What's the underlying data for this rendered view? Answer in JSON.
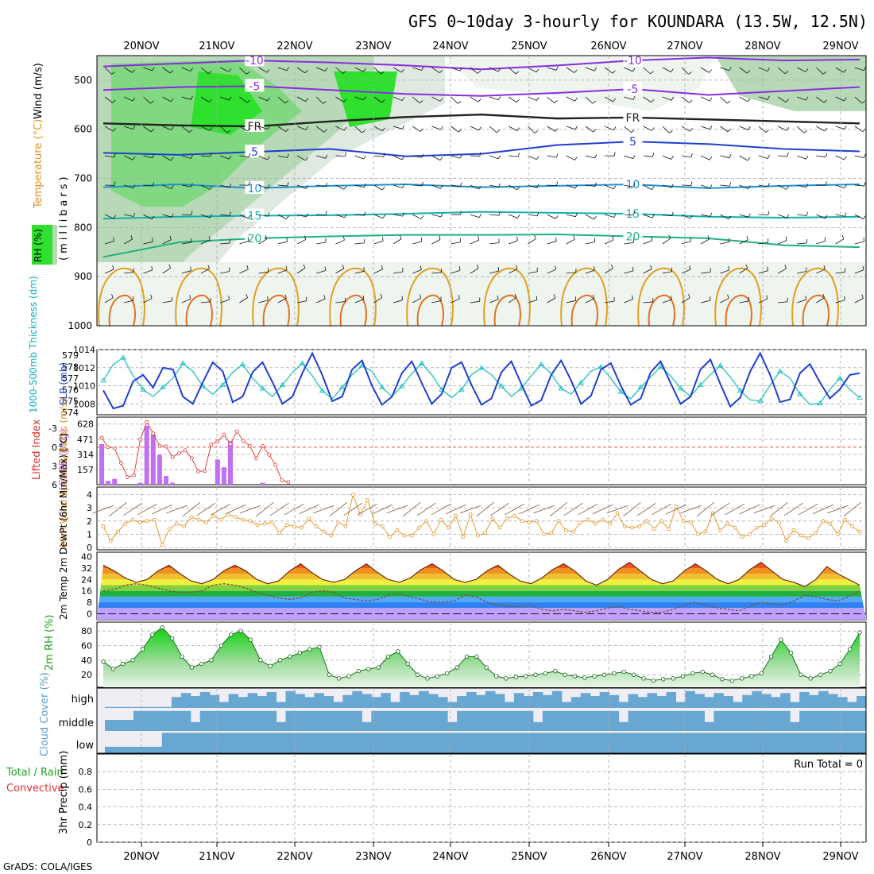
{
  "chart_data": {
    "type": "meteogram",
    "title": "GFS 0~10day 3-hourly for KOUNDARA (13.5W, 12.5N)",
    "credit": "GrADS: COLA/IGES",
    "dates": [
      "20NOV",
      "21NOV",
      "22NOV",
      "23NOV",
      "24NOV",
      "25NOV",
      "26NOV",
      "27NOV",
      "28NOV",
      "29NOV"
    ],
    "upper_air": {
      "ylabel_wind": "Wind (m/s)",
      "ylabel_temp": "Temperature (°C)",
      "ylabel_rh": "RH (%)",
      "ylabel_pressure": "(millibars)",
      "yticks": [
        "500",
        "600",
        "700",
        "800",
        "900",
        "1000"
      ],
      "contour_labels": [
        "-10",
        "-5",
        "FR",
        "5",
        "10",
        "15",
        "20",
        "-10",
        "-5",
        "FR",
        "5",
        "10",
        "15",
        "20"
      ],
      "isotherms": [
        {
          "label": "-10",
          "color": "#8a2be2",
          "levels": [
            472,
            466,
            460,
            464,
            470,
            478,
            470,
            460,
            454,
            460,
            458
          ]
        },
        {
          "label": "-5",
          "color": "#8a2be2",
          "levels": [
            520,
            514,
            512,
            520,
            528,
            532,
            526,
            518,
            530,
            522,
            514
          ]
        },
        {
          "label": "FR",
          "color": "#222222",
          "levels": [
            588,
            592,
            594,
            584,
            575,
            570,
            578,
            576,
            580,
            584,
            588
          ]
        },
        {
          "label": "5",
          "color": "#1f3fd0",
          "levels": [
            648,
            652,
            646,
            640,
            655,
            650,
            632,
            625,
            630,
            640,
            645
          ]
        },
        {
          "label": "10",
          "color": "#1e90d0",
          "levels": [
            718,
            712,
            720,
            715,
            712,
            718,
            715,
            712,
            720,
            715,
            712
          ]
        },
        {
          "label": "15",
          "color": "#10b0b0",
          "levels": [
            782,
            778,
            776,
            775,
            772,
            768,
            770,
            772,
            778,
            780,
            778
          ]
        },
        {
          "label": "20",
          "color": "#20b080",
          "levels": [
            860,
            830,
            822,
            818,
            815,
            815,
            814,
            818,
            822,
            836,
            840
          ]
        }
      ]
    },
    "thickness_slp": {
      "ylabel_left": "1000-500mb Thickness (dm)",
      "ylabel_right": "SLP (mb)",
      "yticks_left": [
        "579",
        "578",
        "577",
        "576",
        "575",
        "574"
      ],
      "yticks_right": [
        "1014",
        "1012",
        "1010",
        "1008"
      ],
      "thickness": [
        576.8,
        578.2,
        578.8,
        577.2,
        576.0,
        575.4,
        576.2,
        577.0,
        578.3,
        577.6,
        576.3,
        575.6,
        576.4,
        577.5,
        578.2,
        577.0,
        576.1,
        575.4,
        576.4,
        577.5,
        578.3,
        577.2,
        575.9,
        575.2,
        576.2,
        577.3,
        578.1,
        577.6,
        576.2,
        575.4,
        576.3,
        577.4,
        578.3,
        577.3,
        576.0,
        575.3,
        576.0,
        577.3,
        577.9,
        577.3,
        576.3,
        575.4,
        576.1,
        577.2,
        578.2,
        577.4,
        576.1,
        575.6,
        576.6,
        577.6,
        578.0,
        577.0,
        575.8,
        575.2,
        576.2,
        577.1,
        578.0,
        577.2,
        576.1,
        575.4,
        576.4,
        577.3,
        578.1,
        577.1,
        575.9,
        575.1,
        575.0,
        576.4,
        577.6,
        577.0,
        575.6,
        574.7,
        574.8,
        576.0,
        577.0,
        576.0,
        575.3
      ],
      "slp": [
        1009.5,
        1007.5,
        1007.8,
        1010.5,
        1011.2,
        1009.8,
        1012.0,
        1011.8,
        1008.8,
        1008.0,
        1010.4,
        1012.6,
        1011.6,
        1008.2,
        1008.8,
        1011.5,
        1012.6,
        1010.4,
        1008.0,
        1008.8,
        1011.4,
        1013.6,
        1011.2,
        1008.3,
        1008.8,
        1011.8,
        1012.8,
        1010.0,
        1007.9,
        1008.8,
        1011.4,
        1012.7,
        1010.3,
        1008.0,
        1009.1,
        1012.0,
        1012.6,
        1010.1,
        1007.9,
        1008.6,
        1011.5,
        1012.7,
        1010.2,
        1007.8,
        1008.4,
        1011.2,
        1012.8,
        1010.6,
        1008.0,
        1008.9,
        1011.8,
        1012.5,
        1010.0,
        1007.9,
        1008.6,
        1011.5,
        1012.7,
        1010.3,
        1008.0,
        1008.8,
        1011.8,
        1012.9,
        1010.2,
        1007.7,
        1008.7,
        1011.6,
        1013.6,
        1011.2,
        1008.2,
        1008.5,
        1011.4,
        1012.4,
        1010.4,
        1008.6,
        1009.6,
        1011.2,
        1011.4
      ]
    },
    "cape_li": {
      "ylabel_left": "Lifted Index",
      "ylabel_right": "CAPE (J/kg)",
      "yticks_left": [
        "-3",
        "0",
        "3",
        "6"
      ],
      "yticks_right": [
        "628",
        "471",
        "314",
        "157"
      ],
      "cape": [
        420,
        40,
        60,
        0,
        0,
        0,
        20,
        610,
        520,
        310,
        90,
        20,
        0,
        0,
        0,
        0,
        0,
        0,
        260,
        180,
        450,
        0,
        0,
        0,
        0,
        20,
        0,
        0,
        0,
        0
      ],
      "lifted_index": [
        -1.5,
        0.0,
        0.2,
        2.5,
        4.8,
        4.5,
        -1.2,
        -4.0,
        -2.2,
        -0.2,
        -0.1,
        1.6,
        1.0,
        0.5,
        1.8,
        3.9,
        3.8,
        -0.4,
        -0.9,
        -2.0,
        -0.5,
        -2.5,
        -1.0,
        -0.2,
        1.8,
        -0.2,
        1.2,
        2.8,
        5.3,
        5.6
      ]
    },
    "wind10m": {
      "ylabel": "10m Wind Speed & Barbs (m/s)",
      "yticks": [
        "4",
        "3",
        "2",
        "1",
        "0"
      ],
      "speed": [
        1.6,
        0.5,
        1.2,
        1.8,
        2.1,
        1.9,
        2.0,
        2.1,
        0.2,
        1.4,
        1.8,
        1.6,
        2.3,
        2.1,
        1.9,
        2.4,
        2.1,
        2.5,
        2.3,
        2.1,
        2.0,
        1.7,
        1.8,
        1.9,
        1.1,
        1.7,
        1.6,
        1.5,
        2.2,
        1.6,
        1.2,
        0.9,
        1.9,
        1.6,
        4.0,
        2.5,
        3.6,
        1.8,
        1.6,
        0.8,
        1.3,
        0.9,
        0.9,
        1.5,
        2.0,
        1.0,
        2.1,
        1.5,
        2.4,
        0.8,
        2.5,
        0.9,
        1.1,
        2.2,
        1.5,
        2.2,
        2.4,
        2.0,
        1.9,
        2.0,
        1.0,
        1.1,
        2.0,
        1.3,
        1.2,
        1.9,
        2.1,
        1.8,
        2.1,
        1.8,
        2.6,
        1.6,
        1.5,
        1.6,
        2.0,
        1.4,
        2.0,
        1.4,
        3.1,
        2.0,
        1.9,
        1.0,
        1.2,
        2.6,
        1.3,
        1.8,
        1.5,
        0.8,
        1.0,
        1.5,
        1.7,
        2.2,
        1.9,
        0.5,
        1.3,
        0.9,
        0.7,
        1.1,
        2.0,
        1.8,
        1.0,
        2.1,
        1.6,
        1.2
      ],
      "barb_dir": "NE"
    },
    "temp2m": {
      "ylabel": "2m Temp 2m DewPt (6hr Min/Max) (°C)",
      "yticks": [
        "40",
        "32",
        "24",
        "16",
        "8",
        "0"
      ],
      "temp": [
        34,
        30,
        25,
        22,
        24,
        30,
        34,
        28,
        23,
        21,
        24,
        30,
        34,
        30,
        24,
        21,
        23,
        30,
        35,
        29,
        24,
        22,
        24,
        30,
        35,
        29,
        24,
        22,
        25,
        31,
        35,
        30,
        24,
        22,
        24,
        30,
        34,
        28,
        23,
        21,
        25,
        31,
        35,
        30,
        23,
        20,
        24,
        31,
        36,
        30,
        24,
        21,
        23,
        30,
        35,
        30,
        24,
        21,
        24,
        31,
        36,
        30,
        24,
        22,
        19,
        24,
        33,
        28,
        24,
        20
      ],
      "dewpt": [
        16,
        17,
        20,
        21,
        20,
        18,
        16,
        15,
        15,
        16,
        20,
        21,
        20,
        18,
        15,
        13,
        11,
        10,
        11,
        15,
        16,
        15,
        11,
        10,
        9,
        10,
        13,
        14,
        12,
        10,
        8,
        8,
        9,
        13,
        12,
        8,
        6,
        5,
        5,
        6,
        3,
        2,
        3,
        2,
        1,
        2,
        4,
        5,
        3,
        2,
        1,
        1,
        3,
        6,
        8,
        6,
        4,
        3,
        2,
        5,
        8,
        7,
        6,
        9,
        13,
        12,
        10,
        9,
        12,
        16
      ]
    },
    "rh2m": {
      "ylabel": "2m RH (%)",
      "yticks": [
        "80",
        "60",
        "40",
        "20"
      ],
      "values": [
        38,
        28,
        35,
        40,
        55,
        75,
        85,
        70,
        45,
        30,
        35,
        40,
        60,
        75,
        80,
        68,
        40,
        32,
        40,
        45,
        50,
        55,
        58,
        20,
        15,
        18,
        25,
        28,
        30,
        45,
        52,
        35,
        20,
        15,
        18,
        22,
        30,
        45,
        45,
        30,
        18,
        15,
        17,
        18,
        20,
        22,
        25,
        20,
        18,
        16,
        18,
        20,
        22,
        24,
        20,
        15,
        12,
        14,
        15,
        18,
        22,
        24,
        20,
        14,
        12,
        15,
        18,
        22,
        45,
        68,
        50,
        20,
        15,
        20,
        25,
        35,
        55,
        78
      ]
    },
    "cloud": {
      "ylabel": "Cloud Cover (%)",
      "levels": [
        "high",
        "middle",
        "low"
      ]
    },
    "precip": {
      "ylabel_total": "Total / Rain",
      "ylabel_conv": "Convective",
      "ylabel": "3hr Precip (mm)",
      "yticks": [
        "0.8",
        "0.6",
        "0.4",
        "0.2",
        "0"
      ],
      "run_total_label": "Run Total = 0",
      "values": []
    }
  }
}
